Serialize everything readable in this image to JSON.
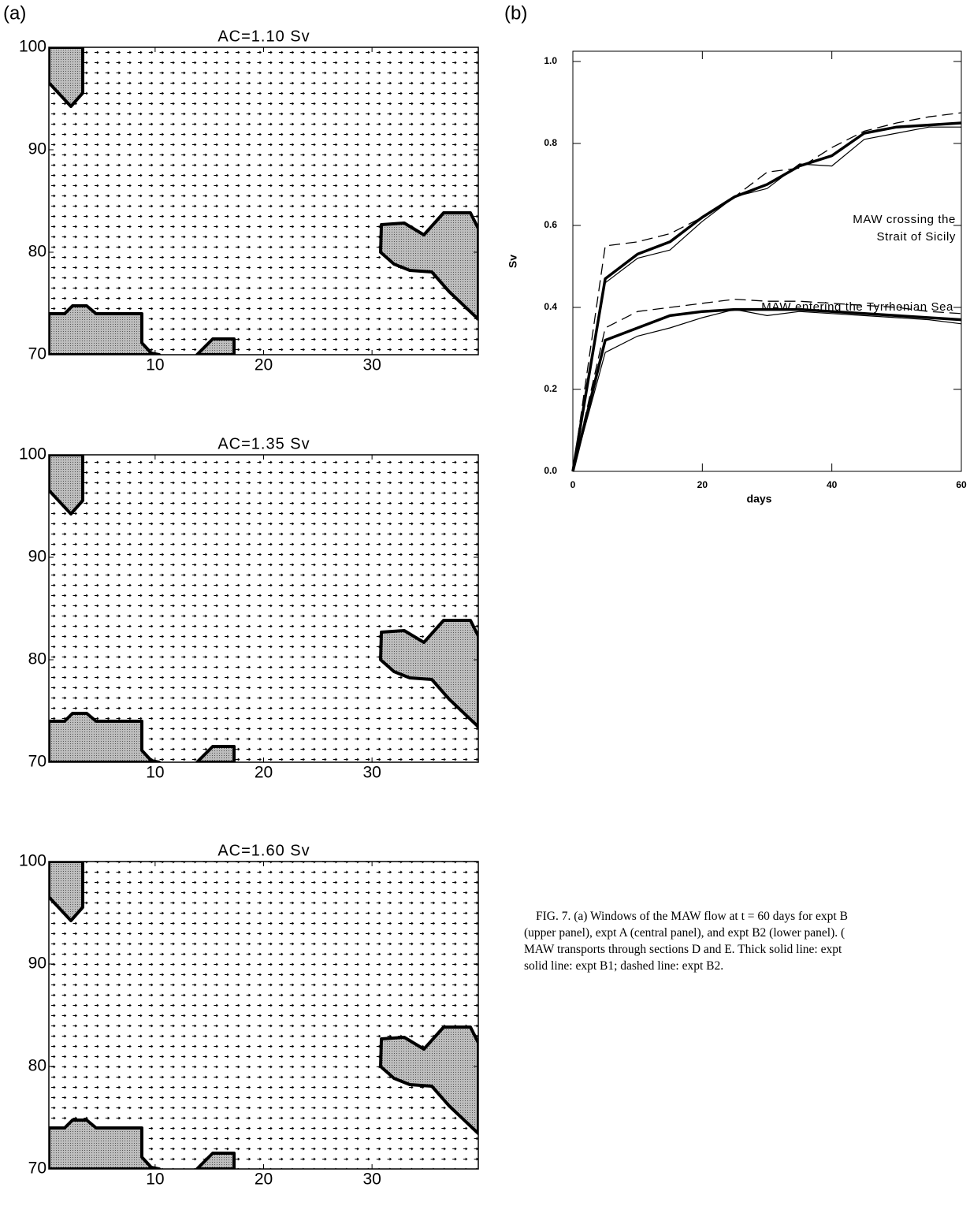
{
  "panel_labels": [
    "(a)",
    "(b)"
  ],
  "chart_data": [
    {
      "type": "quiver",
      "title": "AC=1.10 Sv",
      "xlim": [
        0.2,
        39.8
      ],
      "ylim": [
        70,
        100
      ],
      "xticks": [
        10,
        20,
        30
      ],
      "yticks": [
        70,
        80,
        90,
        100
      ]
    },
    {
      "type": "quiver",
      "title": "AC=1.35 Sv",
      "xlim": [
        0.2,
        39.8
      ],
      "ylim": [
        70,
        100
      ],
      "xticks": [
        10,
        20,
        30
      ],
      "yticks": [
        70,
        80,
        90,
        100
      ]
    },
    {
      "type": "quiver",
      "title": "AC=1.60 Sv",
      "xlim": [
        0.2,
        39.8
      ],
      "ylim": [
        70,
        100
      ],
      "xticks": [
        10,
        20,
        30
      ],
      "yticks": [
        70,
        80,
        90,
        100
      ]
    },
    {
      "type": "line",
      "xlabel": "days",
      "ylabel": "Sv",
      "x": [
        0,
        5,
        10,
        15,
        20,
        25,
        30,
        35,
        40,
        45,
        50,
        55,
        60
      ],
      "xlim": [
        0,
        60
      ],
      "xticks": [
        0,
        20,
        40,
        60
      ],
      "ylim": [
        0,
        1.025
      ],
      "yticks": [
        {
          "value": 0,
          "label": "0.0"
        },
        0.2,
        0.4,
        0.6,
        0.8,
        {
          "value": 1,
          "label": "1.0"
        }
      ],
      "series": [
        {
          "color": "#000000",
          "style": "thick",
          "values": [
            0,
            0.47,
            0.53,
            0.56,
            0.62,
            0.67,
            0.7,
            0.745,
            0.77,
            0.825,
            0.84,
            0.845,
            0.85
          ]
        },
        {
          "color": "#000000",
          "style": "thin",
          "values": [
            0,
            0.46,
            0.52,
            0.54,
            0.61,
            0.67,
            0.69,
            0.75,
            0.745,
            0.81,
            0.825,
            0.84,
            0.84
          ]
        },
        {
          "color": "#000000",
          "style": "dashed",
          "values": [
            0,
            0.55,
            0.56,
            0.58,
            0.62,
            0.67,
            0.73,
            0.74,
            0.79,
            0.83,
            0.85,
            0.865,
            0.875
          ]
        },
        {
          "color": "#000000",
          "style": "thick",
          "values": [
            0,
            0.32,
            0.35,
            0.38,
            0.39,
            0.395,
            0.395,
            0.395,
            0.39,
            0.385,
            0.38,
            0.375,
            0.37
          ]
        },
        {
          "color": "#000000",
          "style": "thin",
          "values": [
            0,
            0.29,
            0.33,
            0.35,
            0.375,
            0.395,
            0.38,
            0.39,
            0.385,
            0.38,
            0.375,
            0.37,
            0.36
          ]
        },
        {
          "color": "#000000",
          "style": "dashed",
          "values": [
            0,
            0.35,
            0.39,
            0.4,
            0.41,
            0.42,
            0.415,
            0.415,
            0.41,
            0.405,
            0.4,
            0.39,
            0.385
          ]
        }
      ],
      "annotations": [
        "MAW crossing the",
        "Strait of Sicily",
        "MAW entering the Tyrrhenian Sea"
      ]
    }
  ],
  "caption": [
    "FIG. 7. (a) Windows of the MAW flow at t = 60 days for expt B",
    "(upper panel), expt A (central panel), and expt B2 (lower panel). (",
    "MAW transports through sections D and E. Thick solid line: expt",
    "solid line: expt B1; dashed line: expt B2."
  ]
}
